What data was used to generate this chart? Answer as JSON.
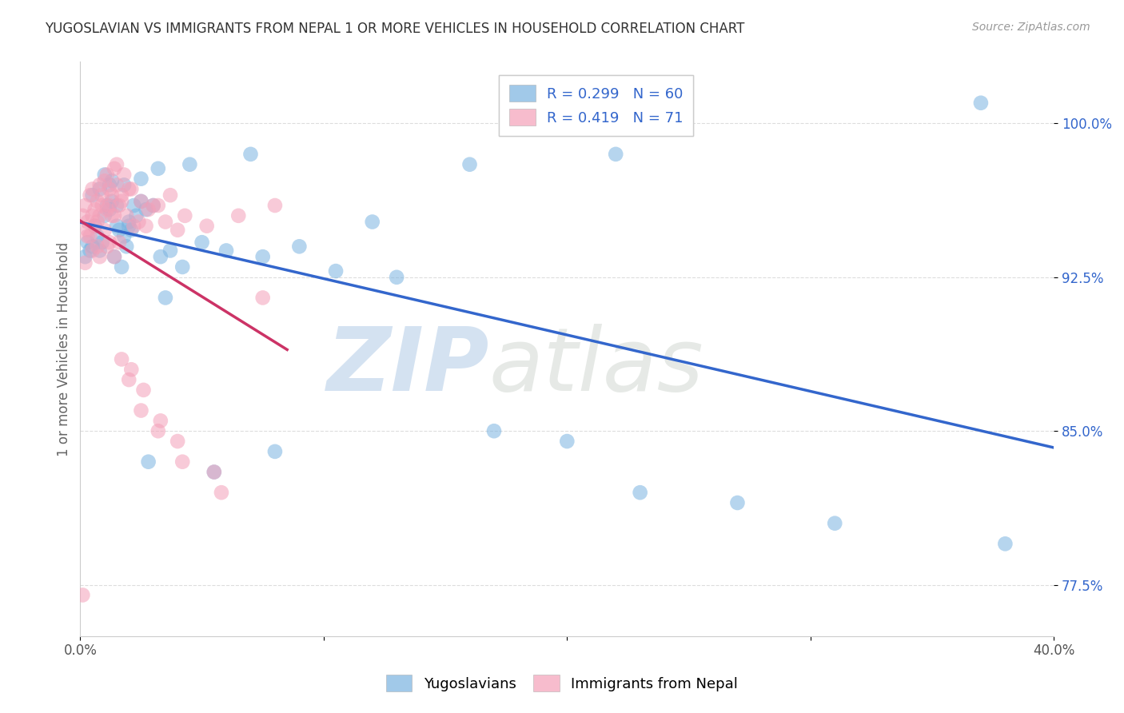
{
  "title": "YUGOSLAVIAN VS IMMIGRANTS FROM NEPAL 1 OR MORE VEHICLES IN HOUSEHOLD CORRELATION CHART",
  "source": "Source: ZipAtlas.com",
  "ylabel": "1 or more Vehicles in Household",
  "xlim": [
    0.0,
    40.0
  ],
  "ylim": [
    75.0,
    103.0
  ],
  "yticks": [
    77.5,
    85.0,
    92.5,
    100.0
  ],
  "yticklabels": [
    "77.5%",
    "85.0%",
    "92.5%",
    "100.0%"
  ],
  "legend_labels_bottom": [
    "Yugoslavians",
    "Immigrants from Nepal"
  ],
  "blue_color": "#7ab3e0",
  "pink_color": "#f4a0b8",
  "blue_line_color": "#3366cc",
  "pink_line_color": "#cc3366",
  "grid_color": "#dddddd",
  "blue_scatter_x": [
    0.2,
    0.3,
    0.4,
    0.5,
    0.6,
    0.7,
    0.8,
    0.9,
    1.0,
    1.1,
    1.2,
    1.3,
    1.4,
    1.5,
    1.6,
    1.7,
    1.8,
    1.9,
    2.0,
    2.1,
    2.2,
    2.3,
    2.5,
    2.7,
    3.0,
    3.3,
    3.7,
    4.2,
    5.0,
    6.0,
    7.5,
    9.0,
    10.5,
    13.0,
    17.0,
    20.0,
    23.0,
    27.0,
    31.0,
    38.0,
    0.5,
    0.8,
    1.2,
    1.5,
    2.0,
    2.8,
    3.5,
    5.5,
    8.0,
    12.0,
    1.0,
    1.3,
    1.8,
    2.5,
    3.2,
    4.5,
    7.0,
    16.0,
    22.0,
    37.0
  ],
  "blue_scatter_y": [
    93.5,
    94.2,
    93.8,
    94.0,
    95.0,
    94.5,
    93.8,
    94.2,
    95.5,
    96.0,
    95.8,
    96.2,
    93.5,
    95.0,
    94.8,
    93.0,
    94.5,
    94.0,
    95.2,
    94.8,
    96.0,
    95.5,
    96.2,
    95.8,
    96.0,
    93.5,
    93.8,
    93.0,
    94.2,
    93.8,
    93.5,
    94.0,
    92.8,
    92.5,
    85.0,
    84.5,
    82.0,
    81.5,
    80.5,
    79.5,
    96.5,
    96.8,
    97.0,
    96.0,
    95.0,
    83.5,
    91.5,
    83.0,
    84.0,
    95.2,
    97.5,
    97.2,
    97.0,
    97.3,
    97.8,
    98.0,
    98.5,
    98.0,
    98.5,
    101.0
  ],
  "pink_scatter_x": [
    0.1,
    0.2,
    0.3,
    0.4,
    0.5,
    0.6,
    0.7,
    0.8,
    0.9,
    1.0,
    1.1,
    1.2,
    1.3,
    1.4,
    1.5,
    1.6,
    1.7,
    1.8,
    2.0,
    2.2,
    2.5,
    2.8,
    3.2,
    3.7,
    4.3,
    5.2,
    6.5,
    8.0,
    0.3,
    0.5,
    0.7,
    0.9,
    1.1,
    1.3,
    1.5,
    1.7,
    1.9,
    2.1,
    2.4,
    2.7,
    3.0,
    3.5,
    4.0,
    0.4,
    0.6,
    0.8,
    1.0,
    1.2,
    1.4,
    1.6,
    2.0,
    2.5,
    3.2,
    4.0,
    5.5,
    0.2,
    0.5,
    0.8,
    1.1,
    1.4,
    1.7,
    2.1,
    2.6,
    3.3,
    4.2,
    5.8,
    7.5,
    0.3,
    0.7,
    1.2,
    0.1
  ],
  "pink_scatter_y": [
    95.5,
    96.0,
    95.2,
    96.5,
    96.8,
    95.8,
    96.2,
    97.0,
    96.5,
    97.2,
    97.5,
    96.8,
    95.5,
    97.8,
    98.0,
    96.0,
    96.5,
    97.5,
    96.8,
    95.0,
    96.2,
    95.8,
    96.0,
    96.5,
    95.5,
    95.0,
    95.5,
    96.0,
    94.8,
    95.5,
    95.2,
    96.0,
    95.8,
    96.5,
    97.0,
    96.2,
    95.5,
    96.8,
    95.2,
    95.0,
    96.0,
    95.2,
    94.8,
    94.5,
    95.0,
    95.5,
    94.8,
    96.0,
    95.5,
    94.2,
    87.5,
    86.0,
    85.0,
    84.5,
    83.0,
    93.2,
    93.8,
    93.5,
    94.0,
    93.5,
    88.5,
    88.0,
    87.0,
    85.5,
    83.5,
    82.0,
    91.5,
    94.5,
    94.0,
    94.2,
    77.0
  ]
}
